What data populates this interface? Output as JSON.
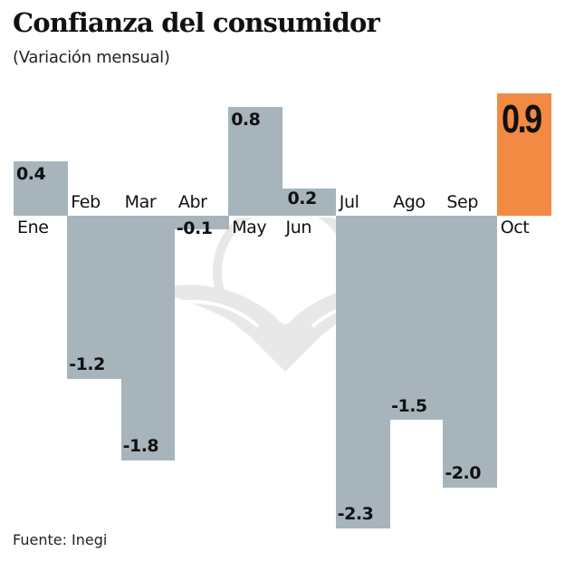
{
  "title": "Confianza del consumidor",
  "subtitle": "(Variación mensual)",
  "source": "Fuente: Inegi",
  "colors": {
    "bar": "#a7b4bc",
    "highlight": "#f28a43",
    "text": "#111111"
  },
  "chart_data": {
    "type": "bar",
    "title": "Confianza del consumidor",
    "subtitle": "(Variación mensual)",
    "xlabel": "",
    "ylabel": "",
    "categories": [
      "Ene",
      "Feb",
      "Mar",
      "Abr",
      "May",
      "Jun",
      "Jul",
      "Ago",
      "Sep",
      "Oct"
    ],
    "values": [
      0.4,
      -1.2,
      -1.8,
      -0.1,
      0.8,
      0.2,
      -2.3,
      -1.5,
      -2.0,
      0.9
    ],
    "value_labels": [
      "0.4",
      "-1.2",
      "-1.8",
      "-0.1",
      "0.8",
      "0.2",
      "-2.3",
      "-1.5",
      "-2.0",
      "0.9"
    ],
    "highlight_index": 9,
    "ylim": [
      -2.3,
      0.9
    ],
    "grid": false,
    "legend": "none",
    "source": "Fuente: Inegi"
  }
}
